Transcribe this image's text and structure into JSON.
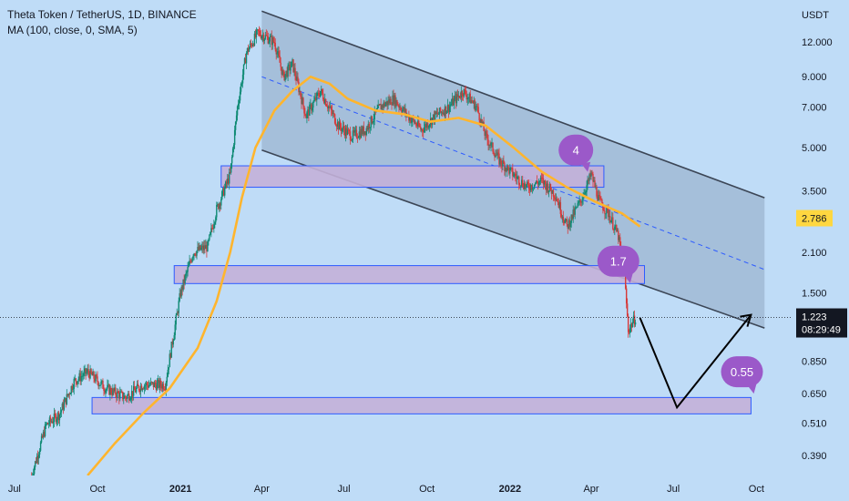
{
  "header": {
    "symbol_line": "Theta Token / TetherUS, 1D, BINANCE",
    "indicator_line": "MA (100, close, 0, SMA, 5)"
  },
  "colors": {
    "background": "#bfdcf7",
    "candle_up": "#0f8a74",
    "candle_down": "#d63a3a",
    "ma_line": "#ffb52e",
    "channel_fill": "#8fa8c2",
    "zone_fill": "#c3b0d8",
    "zone_border": "#2d5bff",
    "bubble": "#9b59c9",
    "price_tag": "#ffd740",
    "current_tag": "#131722"
  },
  "axis": {
    "currency": "USDT",
    "current_price": "1.223",
    "countdown": "08:29:49",
    "ma_value": "2.786"
  },
  "annotations": [
    {
      "text": "4"
    },
    {
      "text": "1.7"
    },
    {
      "text": "0.55"
    }
  ],
  "chart_data": {
    "type": "candlestick",
    "scale": "log",
    "ylim": [
      0.33,
      17
    ],
    "y_ticks": [
      "12.000",
      "9.000",
      "7.000",
      "5.000",
      "3.500",
      "2.100",
      "1.500",
      "0.850",
      "0.650",
      "0.510",
      "0.390"
    ],
    "x_ticks": [
      "Jul",
      "Oct",
      "2021",
      "Apr",
      "Jul",
      "Oct",
      "2022",
      "Apr",
      "Jul",
      "Oct"
    ],
    "price_path": [
      [
        "2020-07-20",
        0.33
      ],
      [
        "2020-08-05",
        0.5
      ],
      [
        "2020-08-20",
        0.55
      ],
      [
        "2020-09-05",
        0.72
      ],
      [
        "2020-09-20",
        0.78
      ],
      [
        "2020-10-10",
        0.68
      ],
      [
        "2020-11-01",
        0.63
      ],
      [
        "2020-11-20",
        0.7
      ],
      [
        "2020-12-15",
        0.7
      ],
      [
        "2021-01-01",
        1.5
      ],
      [
        "2021-01-15",
        2.1
      ],
      [
        "2021-01-31",
        2.2
      ],
      [
        "2021-02-10",
        3.0
      ],
      [
        "2021-02-25",
        4.0
      ],
      [
        "2021-03-05",
        7.0
      ],
      [
        "2021-03-15",
        11.0
      ],
      [
        "2021-03-28",
        13.0
      ],
      [
        "2021-04-15",
        12.0
      ],
      [
        "2021-04-25",
        9.0
      ],
      [
        "2021-05-05",
        10.0
      ],
      [
        "2021-05-20",
        6.5
      ],
      [
        "2021-06-05",
        8.0
      ],
      [
        "2021-06-25",
        6.0
      ],
      [
        "2021-07-10",
        5.5
      ],
      [
        "2021-07-25",
        5.8
      ],
      [
        "2021-08-10",
        7.0
      ],
      [
        "2021-08-25",
        7.5
      ],
      [
        "2021-09-10",
        6.5
      ],
      [
        "2021-09-25",
        5.8
      ],
      [
        "2021-10-10",
        6.5
      ],
      [
        "2021-10-25",
        7.0
      ],
      [
        "2021-11-10",
        8.0
      ],
      [
        "2021-11-25",
        7.0
      ],
      [
        "2021-12-05",
        5.5
      ],
      [
        "2021-12-20",
        4.5
      ],
      [
        "2022-01-05",
        4.0
      ],
      [
        "2022-01-20",
        3.6
      ],
      [
        "2022-02-05",
        3.8
      ],
      [
        "2022-02-20",
        3.4
      ],
      [
        "2022-03-05",
        2.6
      ],
      [
        "2022-03-20",
        3.2
      ],
      [
        "2022-04-01",
        4.0
      ],
      [
        "2022-04-10",
        3.2
      ],
      [
        "2022-04-20",
        2.9
      ],
      [
        "2022-05-01",
        2.4
      ],
      [
        "2022-05-08",
        1.7
      ],
      [
        "2022-05-12",
        1.1
      ],
      [
        "2022-05-20",
        1.223
      ]
    ],
    "moving_average": {
      "name": "MA (100, close, 0, SMA, 5)",
      "points": [
        [
          "2020-09-20",
          0.33
        ],
        [
          "2020-10-20",
          0.43
        ],
        [
          "2020-11-20",
          0.55
        ],
        [
          "2020-12-20",
          0.68
        ],
        [
          "2021-01-20",
          0.95
        ],
        [
          "2021-02-10",
          1.4
        ],
        [
          "2021-02-25",
          2.1
        ],
        [
          "2021-03-10",
          3.3
        ],
        [
          "2021-03-25",
          5.0
        ],
        [
          "2021-04-15",
          6.8
        ],
        [
          "2021-05-05",
          8.0
        ],
        [
          "2021-05-25",
          9.0
        ],
        [
          "2021-06-15",
          8.5
        ],
        [
          "2021-07-05",
          7.5
        ],
        [
          "2021-08-05",
          6.8
        ],
        [
          "2021-09-05",
          6.6
        ],
        [
          "2021-10-05",
          6.2
        ],
        [
          "2021-11-05",
          6.4
        ],
        [
          "2021-12-05",
          6.0
        ],
        [
          "2022-01-05",
          5.0
        ],
        [
          "2022-02-05",
          4.1
        ],
        [
          "2022-03-05",
          3.6
        ],
        [
          "2022-04-05",
          3.2
        ],
        [
          "2022-05-05",
          2.9
        ],
        [
          "2022-05-25",
          2.6
        ]
      ]
    },
    "channel": {
      "upper": [
        [
          "2021-04-01",
          15.5
        ],
        [
          "2022-10-10",
          3.3
        ]
      ],
      "lower": [
        [
          "2021-04-01",
          4.9
        ],
        [
          "2022-10-10",
          1.12
        ]
      ],
      "median": [
        [
          "2021-04-01",
          9.0
        ],
        [
          "2022-10-10",
          1.82
        ]
      ]
    },
    "zones": [
      {
        "start": "2021-02-15",
        "end": "2022-04-15",
        "low": 3.6,
        "high": 4.3
      },
      {
        "start": "2020-12-25",
        "end": "2022-05-30",
        "low": 1.62,
        "high": 1.88
      },
      {
        "start": "2020-09-25",
        "end": "2022-09-25",
        "low": 0.55,
        "high": 0.63
      }
    ],
    "projection": [
      [
        "2022-05-25",
        1.22
      ],
      [
        "2022-07-05",
        0.58
      ],
      [
        "2022-09-25",
        1.25
      ]
    ],
    "bubble_anchors": [
      {
        "text": "4",
        "date": "2022-03-15",
        "price": 4.9
      },
      {
        "text": "1.7",
        "date": "2022-05-01",
        "price": 1.95
      },
      {
        "text": "0.55",
        "date": "2022-09-15",
        "price": 0.78
      }
    ]
  }
}
